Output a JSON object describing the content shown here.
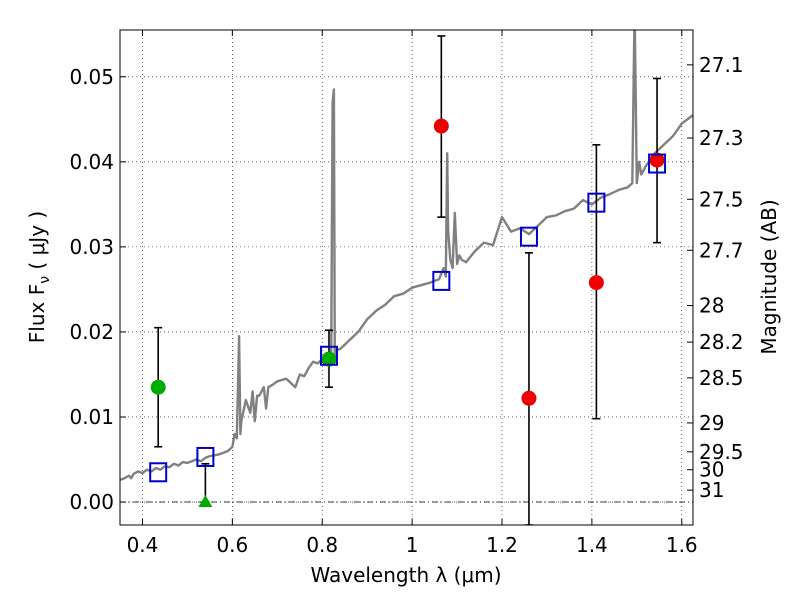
{
  "chart_data": {
    "type": "scatter",
    "xlabel": "Wavelength  λ (μm)",
    "ylabel": "Flux  F",
    "ylabel_sub": "ν",
    "ylabel_unit": "  ( μJy )",
    "y2label": "Magnitude (AB)",
    "xlim": [
      0.35,
      1.625
    ],
    "ylim": [
      -0.0027,
      0.0555
    ],
    "grid": true,
    "x_ticks": [
      0.4,
      0.6,
      0.8,
      1.0,
      1.2,
      1.4,
      1.6
    ],
    "x_tick_labels": [
      "0.4",
      "0.6",
      "0.8",
      "1",
      "1.2",
      "1.4",
      "1.6"
    ],
    "y_ticks": [
      0.0,
      0.01,
      0.02,
      0.03,
      0.04,
      0.05
    ],
    "y_tick_labels": [
      "0.00",
      "0.01",
      "0.02",
      "0.03",
      "0.04",
      "0.05"
    ],
    "y2_ticks": [
      {
        "label": "27.1",
        "flux": 0.0514
      },
      {
        "label": "27.3",
        "flux": 0.0428
      },
      {
        "label": "27.5",
        "flux": 0.0356
      },
      {
        "label": "27.7",
        "flux": 0.0296
      },
      {
        "label": "28",
        "flux": 0.0231
      },
      {
        "label": "28.2",
        "flux": 0.0188
      },
      {
        "label": "28.5",
        "flux": 0.0146
      },
      {
        "label": "29",
        "flux": 0.0093
      },
      {
        "label": "29.5",
        "flux": 0.0059
      },
      {
        "label": "30",
        "flux": 0.0038
      },
      {
        "label": "31",
        "flux": 0.0014
      }
    ],
    "colors": {
      "model": "#808080",
      "green": "#00aa00",
      "red": "#ee0000",
      "blue": "#0000cc",
      "errorbar": "#000000"
    },
    "model_sed": {
      "name": "",
      "x": [
        0.35,
        0.36,
        0.37,
        0.375,
        0.38,
        0.39,
        0.4,
        0.41,
        0.42,
        0.43,
        0.44,
        0.45,
        0.46,
        0.47,
        0.48,
        0.49,
        0.5,
        0.51,
        0.52,
        0.53,
        0.54,
        0.55,
        0.56,
        0.57,
        0.58,
        0.59,
        0.6,
        0.605,
        0.61,
        0.615,
        0.618,
        0.62,
        0.63,
        0.64,
        0.645,
        0.65,
        0.655,
        0.66,
        0.67,
        0.675,
        0.68,
        0.69,
        0.7,
        0.72,
        0.74,
        0.75,
        0.76,
        0.77,
        0.78,
        0.79,
        0.8,
        0.81,
        0.82,
        0.823,
        0.826,
        0.828,
        0.83,
        0.84,
        0.85,
        0.86,
        0.88,
        0.9,
        0.92,
        0.94,
        0.96,
        0.98,
        1.0,
        1.02,
        1.04,
        1.05,
        1.06,
        1.07,
        1.075,
        1.078,
        1.08,
        1.085,
        1.09,
        1.095,
        1.1,
        1.105,
        1.11,
        1.12,
        1.14,
        1.16,
        1.18,
        1.2,
        1.22,
        1.24,
        1.26,
        1.28,
        1.3,
        1.32,
        1.34,
        1.36,
        1.38,
        1.4,
        1.42,
        1.44,
        1.46,
        1.48,
        1.49,
        1.495,
        1.5,
        1.505,
        1.51,
        1.52,
        1.54,
        1.56,
        1.58,
        1.6,
        1.625
      ],
      "y": [
        0.0026,
        0.0028,
        0.0031,
        0.0028,
        0.0033,
        0.0036,
        0.0034,
        0.0038,
        0.0036,
        0.004,
        0.0038,
        0.0042,
        0.0041,
        0.0045,
        0.0043,
        0.0047,
        0.0046,
        0.0048,
        0.005,
        0.0048,
        0.0052,
        0.0054,
        0.0055,
        0.0056,
        0.0058,
        0.006,
        0.0065,
        0.008,
        0.0075,
        0.0195,
        0.008,
        0.0095,
        0.012,
        0.0105,
        0.013,
        0.0095,
        0.0125,
        0.0125,
        0.0135,
        0.011,
        0.0135,
        0.0138,
        0.0142,
        0.0145,
        0.0135,
        0.015,
        0.0148,
        0.0158,
        0.0165,
        0.0163,
        0.0168,
        0.0175,
        0.0172,
        0.047,
        0.0485,
        0.0165,
        0.0178,
        0.018,
        0.0185,
        0.019,
        0.02,
        0.0215,
        0.0225,
        0.0232,
        0.0242,
        0.0245,
        0.0252,
        0.0255,
        0.0258,
        0.026,
        0.0262,
        0.0275,
        0.0265,
        0.041,
        0.032,
        0.0285,
        0.0275,
        0.034,
        0.028,
        0.029,
        0.0285,
        0.0282,
        0.0295,
        0.0305,
        0.0302,
        0.0335,
        0.0318,
        0.0322,
        0.0315,
        0.0325,
        0.0335,
        0.0337,
        0.0342,
        0.0345,
        0.0355,
        0.035,
        0.0358,
        0.0362,
        0.0367,
        0.037,
        0.0375,
        0.058,
        0.0375,
        0.04,
        0.0385,
        0.0395,
        0.041,
        0.042,
        0.043,
        0.0445,
        0.0455
      ]
    },
    "series": [
      {
        "name": "",
        "color": "green",
        "marker": "circle",
        "points": [
          {
            "x": 0.435,
            "y": 0.0135,
            "err_low": 0.0065,
            "err_high": 0.0205
          },
          {
            "x": 0.815,
            "y": 0.0168,
            "err_low": 0.0135,
            "err_high": 0.0202
          }
        ]
      },
      {
        "name": "",
        "color": "green",
        "marker": "triangle",
        "points": [
          {
            "x": 0.54,
            "y": 0.0,
            "err_low": 0.0,
            "err_high": 0.0045
          }
        ]
      },
      {
        "name": "",
        "color": "red",
        "marker": "circle",
        "points": [
          {
            "x": 1.065,
            "y": 0.0442,
            "err_low": 0.0335,
            "err_high": 0.0548
          },
          {
            "x": 1.26,
            "y": 0.0122,
            "err_low": -0.0027,
            "err_high": 0.0293
          },
          {
            "x": 1.41,
            "y": 0.0258,
            "err_low": 0.0098,
            "err_high": 0.042
          },
          {
            "x": 1.545,
            "y": 0.0402,
            "err_low": 0.0305,
            "err_high": 0.0498
          }
        ]
      },
      {
        "name": "",
        "color": "blue",
        "marker": "square-open",
        "points": [
          {
            "x": 0.435,
            "y": 0.0035
          },
          {
            "x": 0.54,
            "y": 0.0053
          },
          {
            "x": 0.815,
            "y": 0.0172
          },
          {
            "x": 1.065,
            "y": 0.026
          },
          {
            "x": 1.26,
            "y": 0.0312
          },
          {
            "x": 1.41,
            "y": 0.0352
          },
          {
            "x": 1.545,
            "y": 0.0398
          }
        ]
      }
    ]
  }
}
